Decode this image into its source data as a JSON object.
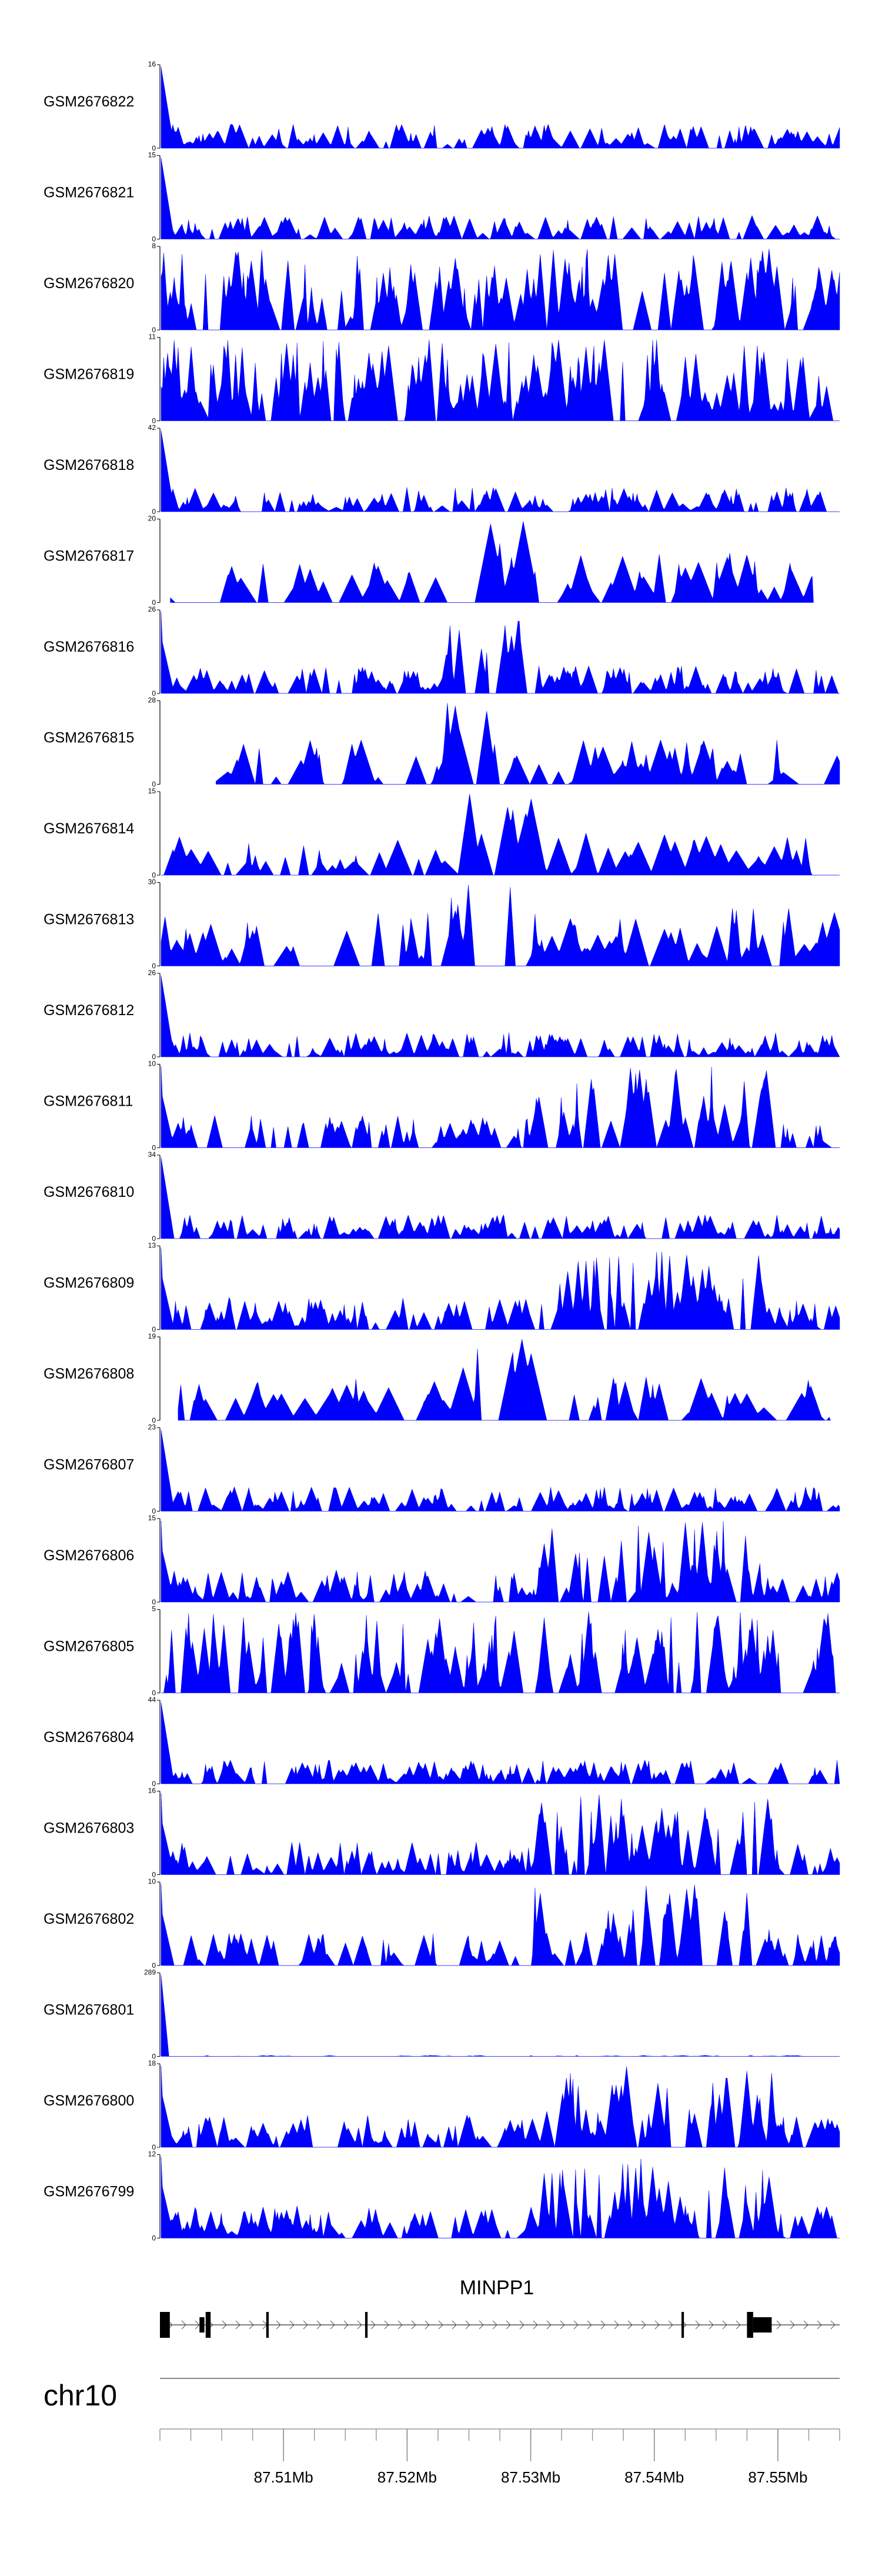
{
  "chart_data": {
    "type": "area",
    "title": "",
    "region": {
      "start_mb": 87.5,
      "end_mb": 87.555
    },
    "tracks": [
      {
        "name": "GSM2676822",
        "ymax": "16",
        "ymin": "0",
        "max": 16,
        "seed": 22,
        "profile": "early",
        "gaps": []
      },
      {
        "name": "GSM2676821",
        "ymax": "15",
        "ymin": "0",
        "max": 15,
        "seed": 21,
        "profile": "early",
        "gaps": []
      },
      {
        "name": "GSM2676820",
        "ymax": "8",
        "ymin": "0",
        "max": 8,
        "seed": 20,
        "profile": "dense",
        "gaps": []
      },
      {
        "name": "GSM2676819",
        "ymax": "11",
        "ymin": "0",
        "max": 11,
        "seed": 19,
        "profile": "dense",
        "gaps": []
      },
      {
        "name": "GSM2676818",
        "ymax": "42",
        "ymin": "0",
        "max": 42,
        "seed": 18,
        "profile": "early",
        "gaps": []
      },
      {
        "name": "GSM2676817",
        "ymax": "20",
        "ymin": "0",
        "max": 20,
        "seed": 17,
        "profile": "sparse",
        "gaps": [
          [
            0.0,
            0.012
          ],
          [
            0.96,
            1.0
          ]
        ]
      },
      {
        "name": "GSM2676816",
        "ymax": "26",
        "ymin": "0",
        "max": 26,
        "seed": 16,
        "profile": "middle",
        "gaps": []
      },
      {
        "name": "GSM2676815",
        "ymax": "28",
        "ymin": "0",
        "max": 28,
        "seed": 15,
        "profile": "sparse",
        "gaps": [
          [
            0.0,
            0.08
          ]
        ]
      },
      {
        "name": "GSM2676814",
        "ymax": "15",
        "ymin": "0",
        "max": 15,
        "seed": 14,
        "profile": "sparse",
        "gaps": []
      },
      {
        "name": "GSM2676813",
        "ymax": "30",
        "ymin": "0",
        "max": 30,
        "seed": 13,
        "profile": "sparse",
        "gaps": []
      },
      {
        "name": "GSM2676812",
        "ymax": "26",
        "ymin": "0",
        "max": 26,
        "seed": 12,
        "profile": "early",
        "gaps": []
      },
      {
        "name": "GSM2676811",
        "ymax": "10",
        "ymin": "0",
        "max": 10,
        "seed": 11,
        "profile": "late",
        "gaps": []
      },
      {
        "name": "GSM2676810",
        "ymax": "34",
        "ymin": "0",
        "max": 34,
        "seed": 10,
        "profile": "early",
        "gaps": []
      },
      {
        "name": "GSM2676809",
        "ymax": "13",
        "ymin": "0",
        "max": 13,
        "seed": 9,
        "profile": "late",
        "gaps": []
      },
      {
        "name": "GSM2676808",
        "ymax": "19",
        "ymin": "0",
        "max": 19,
        "seed": 8,
        "profile": "sparse",
        "gaps": [
          [
            0.0,
            0.025
          ],
          [
            0.985,
            1.0
          ]
        ]
      },
      {
        "name": "GSM2676807",
        "ymax": "23",
        "ymin": "0",
        "max": 23,
        "seed": 7,
        "profile": "early",
        "gaps": []
      },
      {
        "name": "GSM2676806",
        "ymax": "15",
        "ymin": "0",
        "max": 15,
        "seed": 6,
        "profile": "late",
        "gaps": []
      },
      {
        "name": "GSM2676805",
        "ymax": "5",
        "ymin": "0",
        "max": 5,
        "seed": 5,
        "profile": "dense",
        "gaps": []
      },
      {
        "name": "GSM2676804",
        "ymax": "44",
        "ymin": "0",
        "max": 44,
        "seed": 4,
        "profile": "early",
        "gaps": []
      },
      {
        "name": "GSM2676803",
        "ymax": "16",
        "ymin": "0",
        "max": 16,
        "seed": 3,
        "profile": "late",
        "gaps": []
      },
      {
        "name": "GSM2676802",
        "ymax": "10",
        "ymin": "0",
        "max": 10,
        "seed": 2,
        "profile": "late",
        "gaps": []
      },
      {
        "name": "GSM2676801",
        "ymax": "289",
        "ymin": "0",
        "max": 289,
        "seed": 1,
        "profile": "spike",
        "gaps": []
      },
      {
        "name": "GSM2676800",
        "ymax": "18",
        "ymin": "0",
        "max": 18,
        "seed": 100,
        "profile": "late",
        "gaps": []
      },
      {
        "name": "GSM2676799",
        "ymax": "12",
        "ymin": "0",
        "max": 12,
        "seed": 99,
        "profile": "late",
        "gaps": []
      }
    ],
    "gene": {
      "name": "MINPP1",
      "strand": "+",
      "start_mb": 87.5,
      "end_mb": 87.555,
      "exons_mb": [
        [
          87.5,
          87.5008,
          "tall"
        ],
        [
          87.5032,
          87.5036,
          "mid"
        ],
        [
          87.5037,
          87.5041,
          "tall"
        ],
        [
          87.5086,
          87.5088,
          "thin"
        ],
        [
          87.5166,
          87.5168,
          "thin"
        ],
        [
          87.5422,
          87.5424,
          "thin"
        ],
        [
          87.5475,
          87.548,
          "tall"
        ],
        [
          87.548,
          87.5495,
          "mid"
        ]
      ]
    },
    "chromosome": "chr10",
    "xaxis": {
      "labels": [
        "87.51Mb",
        "87.52Mb",
        "87.53Mb",
        "87.54Mb",
        "87.55Mb"
      ],
      "label_values": [
        87.51,
        87.52,
        87.53,
        87.54,
        87.55
      ],
      "minor_step_mb": 0.0025
    }
  }
}
